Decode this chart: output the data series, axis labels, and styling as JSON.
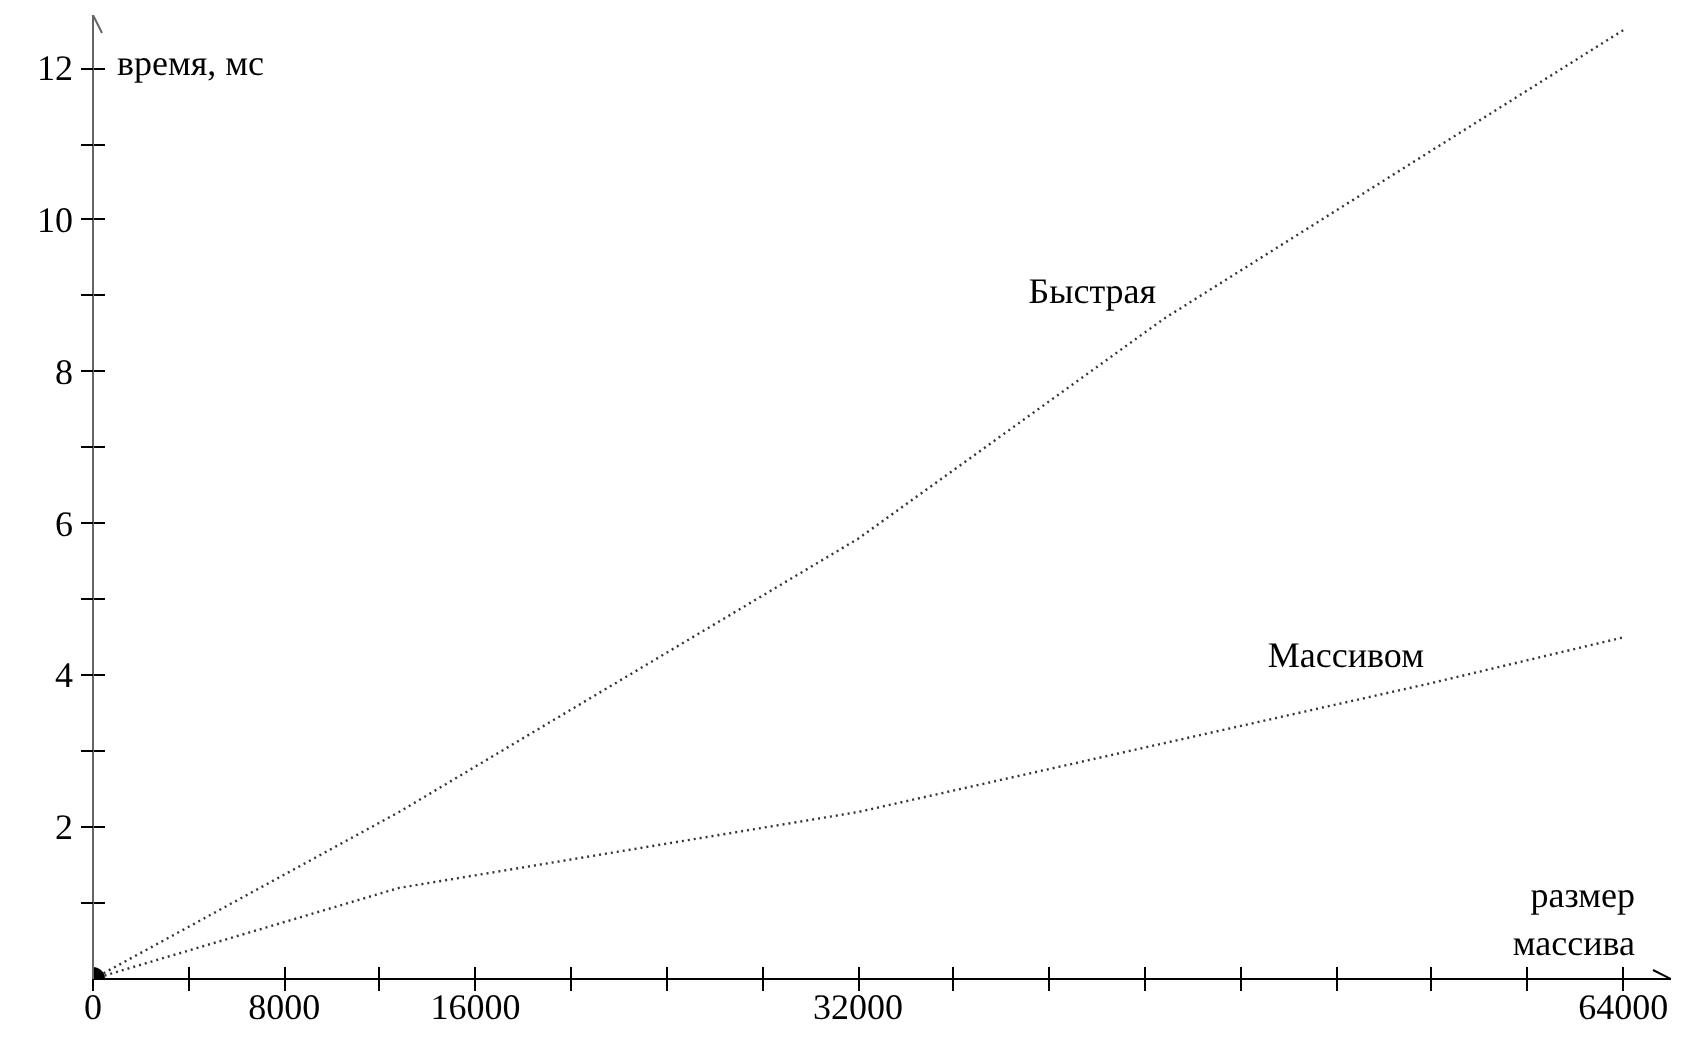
{
  "chart_data": {
    "type": "line",
    "xlabel": "размер массива",
    "ylabel": "время, мс",
    "xlim": [
      0,
      66000
    ],
    "ylim": [
      0,
      12.7
    ],
    "xticks": [
      {
        "value": 0,
        "label": "0"
      },
      {
        "value": 4000,
        "label": null
      },
      8000,
      {
        "value": 12000,
        "label": null
      },
      16000,
      {
        "value": 20000,
        "label": null
      },
      {
        "value": 24000,
        "label": null
      },
      {
        "value": 28000,
        "label": null
      },
      32000,
      {
        "value": 36000,
        "label": null
      },
      {
        "value": 40000,
        "label": null
      },
      {
        "value": 44000,
        "label": null
      },
      {
        "value": 48000,
        "label": null
      },
      {
        "value": 52000,
        "label": null
      },
      {
        "value": 56000,
        "label": null
      },
      {
        "value": 60000,
        "label": null
      },
      64000
    ],
    "yticks": [
      {
        "value": 1,
        "label": null
      },
      2,
      {
        "value": 3,
        "label": null
      },
      4,
      {
        "value": 5,
        "label": null
      },
      6,
      {
        "value": 7,
        "label": null
      },
      8,
      {
        "value": 9,
        "label": null
      },
      10,
      {
        "value": 11,
        "label": null
      },
      12
    ],
    "grid": false,
    "marker": "none",
    "line_style": "dotted",
    "series": [
      {
        "name": "Быстрая",
        "color": "#333333",
        "x": [
          0,
          12800,
          32000,
          44800,
          64000
        ],
        "values": [
          0,
          2.2,
          5.8,
          8.7,
          12.5
        ]
      },
      {
        "name": "Массивом",
        "color": "#333333",
        "x": [
          0,
          12800,
          32000,
          56000,
          64000
        ],
        "values": [
          0,
          1.2,
          2.2,
          3.9,
          4.5
        ]
      },
      {
        "type": "scatter",
        "marker": "circle",
        "color": "#000000",
        "x": [
          0
        ],
        "values": [
          0
        ]
      }
    ]
  }
}
